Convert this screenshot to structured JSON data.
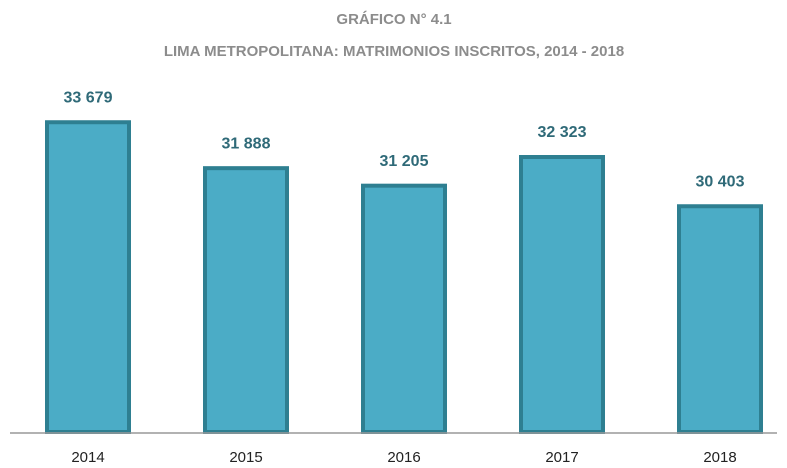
{
  "chart_data": {
    "type": "bar",
    "title": "GRÁFICO N° 4.1",
    "subtitle": "LIMA METROPOLITANA: MATRIMONIOS INSCRITOS, 2014 - 2018",
    "categories": [
      "2014",
      "2015",
      "2016",
      "2017",
      "2018"
    ],
    "values": [
      33679,
      31888,
      31205,
      32323,
      30403
    ],
    "value_labels": [
      "33 679",
      "31 888",
      "31 205",
      "32 323",
      "30 403"
    ],
    "color": "#4bacc6",
    "ylim": [
      21600,
      34000
    ]
  }
}
